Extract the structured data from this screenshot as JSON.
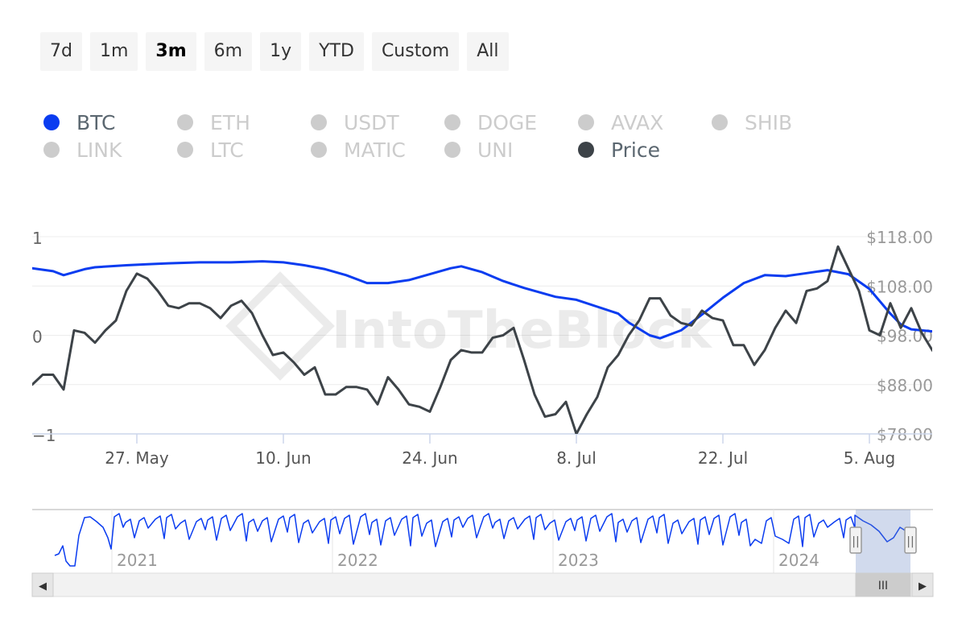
{
  "range_selector": {
    "buttons": [
      "7d",
      "1m",
      "3m",
      "6m",
      "1y",
      "YTD",
      "Custom",
      "All"
    ],
    "active": "3m"
  },
  "legend": [
    {
      "name": "BTC",
      "color": "#0a3cf0",
      "active": true
    },
    {
      "name": "ETH",
      "color": "#cccccc",
      "active": false
    },
    {
      "name": "USDT",
      "color": "#cccccc",
      "active": false
    },
    {
      "name": "DOGE",
      "color": "#cccccc",
      "active": false
    },
    {
      "name": "AVAX",
      "color": "#cccccc",
      "active": false
    },
    {
      "name": "SHIB",
      "color": "#cccccc",
      "active": false
    },
    {
      "name": "LINK",
      "color": "#cccccc",
      "active": false
    },
    {
      "name": "LTC",
      "color": "#cccccc",
      "active": false
    },
    {
      "name": "MATIC",
      "color": "#cccccc",
      "active": false
    },
    {
      "name": "UNI",
      "color": "#cccccc",
      "active": false
    },
    {
      "name": "Price",
      "color": "#3d4348",
      "active": true
    }
  ],
  "watermark": "IntoTheBlock",
  "chart_data": {
    "type": "line",
    "x_range": [
      "2024-05-17",
      "2024-08-11"
    ],
    "x_ticks": [
      {
        "date": "2024-05-27",
        "label": "27. May"
      },
      {
        "date": "2024-06-10",
        "label": "10. Jun"
      },
      {
        "date": "2024-06-24",
        "label": "24. Jun"
      },
      {
        "date": "2024-07-08",
        "label": "8. Jul"
      },
      {
        "date": "2024-07-22",
        "label": "22. Jul"
      },
      {
        "date": "2024-08-05",
        "label": "5. Aug"
      }
    ],
    "y_left": {
      "min": -1,
      "max": 1,
      "ticks": [
        1,
        0,
        -1
      ],
      "tick_labels": [
        "1",
        "0",
        "−1"
      ]
    },
    "y_right": {
      "min": 78,
      "max": 118,
      "ticks": [
        118,
        108,
        98,
        88,
        78
      ],
      "tick_labels": [
        "$118.00",
        "$108.00",
        "$98.00",
        "$88.00",
        "$78.00"
      ]
    },
    "grid": true,
    "series": [
      {
        "name": "BTC",
        "axis": "left",
        "color": "#0a3cf0",
        "points": [
          [
            "2024-05-17",
            0.68
          ],
          [
            "2024-05-19",
            0.65
          ],
          [
            "2024-05-20",
            0.61
          ],
          [
            "2024-05-22",
            0.67
          ],
          [
            "2024-05-23",
            0.69
          ],
          [
            "2024-05-26",
            0.71
          ],
          [
            "2024-05-28",
            0.72
          ],
          [
            "2024-05-30",
            0.73
          ],
          [
            "2024-06-02",
            0.74
          ],
          [
            "2024-06-05",
            0.74
          ],
          [
            "2024-06-08",
            0.75
          ],
          [
            "2024-06-10",
            0.74
          ],
          [
            "2024-06-12",
            0.71
          ],
          [
            "2024-06-14",
            0.67
          ],
          [
            "2024-06-16",
            0.61
          ],
          [
            "2024-06-18",
            0.53
          ],
          [
            "2024-06-20",
            0.53
          ],
          [
            "2024-06-22",
            0.56
          ],
          [
            "2024-06-24",
            0.62
          ],
          [
            "2024-06-26",
            0.68
          ],
          [
            "2024-06-27",
            0.7
          ],
          [
            "2024-06-29",
            0.64
          ],
          [
            "2024-07-01",
            0.55
          ],
          [
            "2024-07-03",
            0.48
          ],
          [
            "2024-07-06",
            0.39
          ],
          [
            "2024-07-08",
            0.36
          ],
          [
            "2024-07-10",
            0.29
          ],
          [
            "2024-07-12",
            0.22
          ],
          [
            "2024-07-13",
            0.13
          ],
          [
            "2024-07-15",
            0.0
          ],
          [
            "2024-07-16",
            -0.03
          ],
          [
            "2024-07-18",
            0.05
          ],
          [
            "2024-07-20",
            0.21
          ],
          [
            "2024-07-22",
            0.38
          ],
          [
            "2024-07-24",
            0.53
          ],
          [
            "2024-07-26",
            0.61
          ],
          [
            "2024-07-28",
            0.6
          ],
          [
            "2024-07-30",
            0.63
          ],
          [
            "2024-08-01",
            0.66
          ],
          [
            "2024-08-03",
            0.62
          ],
          [
            "2024-08-05",
            0.47
          ],
          [
            "2024-08-07",
            0.22
          ],
          [
            "2024-08-08",
            0.11
          ],
          [
            "2024-08-09",
            0.06
          ],
          [
            "2024-08-10",
            0.05
          ],
          [
            "2024-08-11",
            0.04
          ]
        ]
      },
      {
        "name": "Price",
        "axis": "right",
        "color": "#3d4348",
        "points": [
          [
            "2024-05-17",
            88.0
          ],
          [
            "2024-05-18",
            90.0
          ],
          [
            "2024-05-19",
            90.0
          ],
          [
            "2024-05-20",
            87.0
          ],
          [
            "2024-05-21",
            99.0
          ],
          [
            "2024-05-22",
            98.5
          ],
          [
            "2024-05-23",
            96.5
          ],
          [
            "2024-05-24",
            99.0
          ],
          [
            "2024-05-25",
            101.0
          ],
          [
            "2024-05-26",
            107.0
          ],
          [
            "2024-05-27",
            110.5
          ],
          [
            "2024-05-28",
            109.5
          ],
          [
            "2024-05-29",
            107.0
          ],
          [
            "2024-05-30",
            104.0
          ],
          [
            "2024-05-31",
            103.5
          ],
          [
            "2024-06-01",
            104.5
          ],
          [
            "2024-06-02",
            104.5
          ],
          [
            "2024-06-03",
            103.5
          ],
          [
            "2024-06-04",
            101.5
          ],
          [
            "2024-06-05",
            104.0
          ],
          [
            "2024-06-06",
            105.0
          ],
          [
            "2024-06-07",
            102.5
          ],
          [
            "2024-06-08",
            98.0
          ],
          [
            "2024-06-09",
            94.0
          ],
          [
            "2024-06-10",
            94.5
          ],
          [
            "2024-06-11",
            92.5
          ],
          [
            "2024-06-12",
            90.0
          ],
          [
            "2024-06-13",
            91.5
          ],
          [
            "2024-06-14",
            86.0
          ],
          [
            "2024-06-15",
            86.0
          ],
          [
            "2024-06-16",
            87.5
          ],
          [
            "2024-06-17",
            87.5
          ],
          [
            "2024-06-18",
            87.0
          ],
          [
            "2024-06-19",
            84.0
          ],
          [
            "2024-06-20",
            89.5
          ],
          [
            "2024-06-21",
            87.0
          ],
          [
            "2024-06-22",
            84.0
          ],
          [
            "2024-06-23",
            83.5
          ],
          [
            "2024-06-24",
            82.5
          ],
          [
            "2024-06-25",
            87.5
          ],
          [
            "2024-06-26",
            93.0
          ],
          [
            "2024-06-27",
            95.0
          ],
          [
            "2024-06-28",
            94.5
          ],
          [
            "2024-06-29",
            94.5
          ],
          [
            "2024-06-30",
            97.5
          ],
          [
            "2024-07-01",
            98.0
          ],
          [
            "2024-07-02",
            99.5
          ],
          [
            "2024-07-03",
            93.0
          ],
          [
            "2024-07-04",
            86.0
          ],
          [
            "2024-07-05",
            81.5
          ],
          [
            "2024-07-06",
            82.0
          ],
          [
            "2024-07-07",
            84.5
          ],
          [
            "2024-07-08",
            78.0
          ],
          [
            "2024-07-09",
            82.0
          ],
          [
            "2024-07-10",
            85.5
          ],
          [
            "2024-07-11",
            91.5
          ],
          [
            "2024-07-12",
            94.0
          ],
          [
            "2024-07-13",
            98.0
          ],
          [
            "2024-07-14",
            101.0
          ],
          [
            "2024-07-15",
            105.5
          ],
          [
            "2024-07-16",
            105.5
          ],
          [
            "2024-07-17",
            102.0
          ],
          [
            "2024-07-18",
            100.5
          ],
          [
            "2024-07-19",
            100.0
          ],
          [
            "2024-07-20",
            103.0
          ],
          [
            "2024-07-21",
            101.5
          ],
          [
            "2024-07-22",
            101.0
          ],
          [
            "2024-07-23",
            96.0
          ],
          [
            "2024-07-24",
            96.0
          ],
          [
            "2024-07-25",
            92.0
          ],
          [
            "2024-07-26",
            95.0
          ],
          [
            "2024-07-27",
            99.5
          ],
          [
            "2024-07-28",
            103.0
          ],
          [
            "2024-07-29",
            100.5
          ],
          [
            "2024-07-30",
            107.0
          ],
          [
            "2024-07-31",
            107.5
          ],
          [
            "2024-08-01",
            109.0
          ],
          [
            "2024-08-02",
            116.0
          ],
          [
            "2024-08-03",
            111.5
          ],
          [
            "2024-08-04",
            107.0
          ],
          [
            "2024-08-05",
            99.0
          ],
          [
            "2024-08-06",
            98.0
          ],
          [
            "2024-08-07",
            104.5
          ],
          [
            "2024-08-08",
            99.5
          ],
          [
            "2024-08-09",
            103.5
          ],
          [
            "2024-08-10",
            98.5
          ],
          [
            "2024-08-11",
            95.0
          ],
          [
            "2024-08-12",
            92.5
          ],
          [
            "2024-08-13",
            96.0
          ],
          [
            "2024-08-14",
            98.5
          ],
          [
            "2024-08-15",
            107.0
          ]
        ]
      }
    ]
  },
  "navigator": {
    "year_labels": [
      "2021",
      "2022",
      "2023",
      "2024"
    ],
    "scroll_left_label": "◀",
    "scroll_right_label": "▶",
    "scroll_thumb_label": "III",
    "handle_label": "||"
  }
}
